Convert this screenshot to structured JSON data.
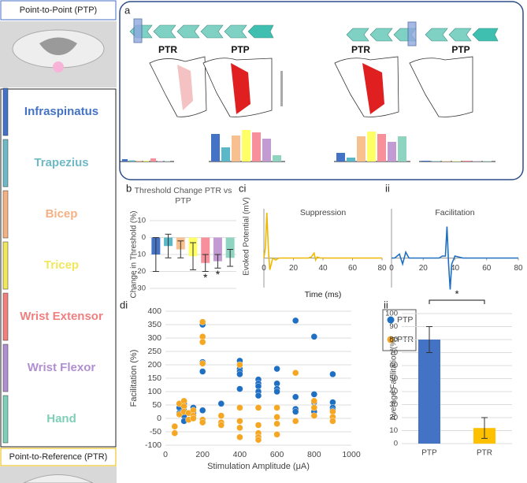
{
  "panel_labels": [
    "a",
    "b",
    "ci",
    "ii",
    "di",
    "ii"
  ],
  "left_panel": {
    "ptp_title": "Point-to-Point (PTP)",
    "ptr_title": "Point-to-Reference (PTR)",
    "muscles": [
      "Infraspinatus",
      "Trapezius",
      "Bicep",
      "Tricep",
      "Wrist Extensor",
      "Wrist Flexor",
      "Hand"
    ],
    "colors": [
      "#4472c4",
      "#6fb9c7",
      "#f4b183",
      "#f2e75c",
      "#f08080",
      "#b08fd0",
      "#7ecfb8"
    ]
  },
  "chart_data": [
    {
      "type": "minibar",
      "title": "PTR",
      "values": [
        3,
        1.5,
        1,
        1,
        4,
        0.5,
        0.5
      ],
      "colors": [
        "#4472c4",
        "#5bb8c9",
        "#f9c08f",
        "#ffff66",
        "#f7909a",
        "#c39bd3",
        "#8fd4c0"
      ]
    },
    {
      "type": "minibar",
      "title": "PTP",
      "values": [
        35,
        18,
        33,
        40,
        37,
        29,
        8
      ],
      "colors": [
        "#4472c4",
        "#5bb8c9",
        "#f9c08f",
        "#ffff66",
        "#f7909a",
        "#c39bd3",
        "#8fd4c0"
      ]
    },
    {
      "type": "minibar",
      "title": "PTR",
      "values": [
        11,
        5,
        32,
        38,
        35,
        25,
        32
      ],
      "colors": [
        "#4472c4",
        "#5bb8c9",
        "#f9c08f",
        "#ffff66",
        "#f7909a",
        "#c39bd3",
        "#8fd4c0"
      ]
    },
    {
      "type": "minibar",
      "title": "PTP",
      "values": [
        1,
        0.5,
        0.5,
        0.5,
        1,
        0.5,
        0.5
      ],
      "colors": [
        "#4472c4",
        "#5bb8c9",
        "#f9c08f",
        "#ffff66",
        "#f7909a",
        "#c39bd3",
        "#8fd4c0"
      ]
    },
    {
      "type": "bar",
      "title": "Threshold Change PTR vs PTP",
      "ylabel": "Change in Threshold (%)",
      "values": [
        -10,
        -5,
        -7,
        -11,
        -15,
        -14,
        -12
      ],
      "errors": [
        10,
        7,
        5,
        8,
        5,
        4,
        5
      ],
      "colors": [
        "#4472c4",
        "#5bb8c9",
        "#f9c08f",
        "#ffff66",
        "#f7909a",
        "#c39bd3",
        "#8fd4c0"
      ],
      "annotations": [
        null,
        null,
        null,
        null,
        "*",
        "*",
        null
      ],
      "ylim": [
        -30,
        10
      ],
      "yticks": [
        10,
        0,
        -10,
        -20,
        -30
      ],
      "grid": true
    },
    {
      "type": "line",
      "title": "Suppression",
      "ylabel": "Evoked Potential (mV)",
      "xlabel": "Time (ms)",
      "x": [
        0,
        1,
        2,
        3,
        4,
        5,
        6,
        8,
        10,
        20,
        30,
        32,
        34,
        35,
        36,
        38,
        40,
        50,
        60,
        70,
        80
      ],
      "series": [
        {
          "color": "#f0b800",
          "values": [
            0,
            0.5,
            2.3,
            0.5,
            -0.6,
            -0.3,
            0,
            -0.1,
            0,
            0,
            0,
            0.05,
            0.25,
            -0.1,
            0.05,
            0,
            0,
            0,
            0,
            0,
            0
          ]
        }
      ],
      "xlim": [
        0,
        80
      ],
      "xticks": [
        0,
        20,
        40,
        60,
        80
      ],
      "ylim": [
        -1.5,
        2.5
      ]
    },
    {
      "type": "line",
      "title": "Facilitation",
      "x": [
        0,
        2,
        5,
        7,
        9,
        11,
        15,
        20,
        30,
        32,
        34,
        35,
        36,
        37,
        38,
        40,
        45,
        50,
        60,
        70,
        80
      ],
      "series": [
        {
          "color": "#1f6fc2",
          "values": [
            0,
            0,
            0.2,
            -0.3,
            0.3,
            0,
            0,
            0,
            0,
            0.1,
            0.1,
            1.6,
            -0.3,
            -1.6,
            -0.3,
            0.1,
            0,
            0,
            0,
            0,
            0
          ]
        }
      ],
      "xlim": [
        0,
        80
      ],
      "xticks": [
        0,
        20,
        40,
        60,
        80
      ],
      "ylim": [
        -1.5,
        2.5
      ]
    },
    {
      "type": "scatter",
      "xlabel": "Stimulation Amplitude (μA)",
      "ylabel": "Facilitation (%)",
      "series": [
        {
          "name": "PTP",
          "color": "#1f6fc2",
          "x": [
            75,
            75,
            100,
            100,
            100,
            100,
            150,
            150,
            200,
            200,
            200,
            200,
            300,
            400,
            400,
            400,
            400,
            400,
            500,
            500,
            500,
            500,
            500,
            600,
            600,
            600,
            600,
            700,
            700,
            700,
            700,
            800,
            800,
            800,
            800,
            800,
            900,
            900,
            900,
            900
          ],
          "values": [
            40,
            20,
            55,
            30,
            10,
            -10,
            40,
            20,
            350,
            210,
            175,
            30,
            55,
            215,
            185,
            175,
            165,
            110,
            145,
            130,
            120,
            100,
            85,
            185,
            130,
            110,
            100,
            365,
            80,
            35,
            25,
            305,
            90,
            60,
            40,
            25,
            165,
            60,
            40,
            30
          ]
        },
        {
          "name": "PTR",
          "color": "#f5a623",
          "x": [
            50,
            50,
            75,
            75,
            100,
            100,
            100,
            125,
            125,
            150,
            150,
            150,
            200,
            200,
            200,
            200,
            200,
            200,
            300,
            300,
            300,
            400,
            400,
            400,
            400,
            400,
            500,
            500,
            500,
            500,
            500,
            600,
            600,
            600,
            600,
            700,
            700,
            800,
            800,
            800,
            900,
            900,
            900
          ],
          "values": [
            -30,
            -55,
            55,
            15,
            65,
            45,
            25,
            20,
            -5,
            30,
            10,
            0,
            360,
            305,
            285,
            205,
            -5,
            -15,
            10,
            -15,
            -25,
            200,
            40,
            -10,
            -35,
            -70,
            40,
            -25,
            -55,
            -70,
            -80,
            40,
            5,
            -20,
            -60,
            170,
            -10,
            65,
            40,
            10,
            25,
            5,
            -10
          ]
        }
      ],
      "xlim": [
        0,
        1000
      ],
      "xticks": [
        0,
        200,
        400,
        600,
        800,
        1000
      ],
      "ylim": [
        -100,
        400
      ],
      "yticks": [
        -100,
        -50,
        0,
        50,
        100,
        150,
        200,
        250,
        300,
        350,
        400
      ],
      "grid": true,
      "legend": "top-right"
    },
    {
      "type": "bar",
      "ylabel": "Average Facilitation (%)",
      "categories": [
        "PTP",
        "PTR"
      ],
      "values": [
        80,
        12
      ],
      "errors": [
        10,
        8
      ],
      "colors": [
        "#4472c4",
        "#ffc000"
      ],
      "significance": "*",
      "ylim": [
        0,
        100
      ],
      "yticks": [
        0,
        10,
        20,
        30,
        40,
        50,
        60,
        70,
        80,
        90,
        100
      ],
      "grid": true
    }
  ]
}
